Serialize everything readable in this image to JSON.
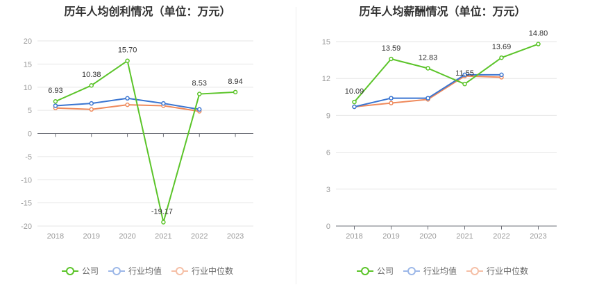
{
  "chart_data": [
    {
      "type": "line",
      "title": "历年人均创利情况（单位：万元）",
      "categories": [
        "2018",
        "2019",
        "2020",
        "2021",
        "2022",
        "2023"
      ],
      "y_ticks": [
        "20",
        "15",
        "10",
        "5",
        "0",
        "-5",
        "-10",
        "-15",
        "-20"
      ],
      "ylim": [
        -20,
        20
      ],
      "series": [
        {
          "name": "公司",
          "color": "#5bc429",
          "values": [
            6.93,
            10.38,
            15.7,
            -19.17,
            8.53,
            8.94
          ],
          "labels": [
            "6.93",
            "10.38",
            "15.70",
            "-19.17",
            "8.53",
            "8.94"
          ]
        },
        {
          "name": "行业均值",
          "color": "#3a75d1",
          "values": [
            6.0,
            6.5,
            7.6,
            6.5,
            5.2,
            null
          ]
        },
        {
          "name": "行业中位数",
          "color": "#ef8a5c",
          "values": [
            5.5,
            5.2,
            6.2,
            6.0,
            4.8,
            null
          ]
        }
      ]
    },
    {
      "type": "line",
      "title": "历年人均薪酬情况（单位：万元）",
      "categories": [
        "2018",
        "2019",
        "2020",
        "2021",
        "2022",
        "2023"
      ],
      "y_ticks": [
        "15",
        "12",
        "9",
        "6",
        "3",
        "0"
      ],
      "ylim": [
        0,
        15
      ],
      "series": [
        {
          "name": "公司",
          "color": "#5bc429",
          "values": [
            10.09,
            13.59,
            12.83,
            11.55,
            13.69,
            14.8
          ],
          "labels": [
            "10.09",
            "13.59",
            "12.83",
            "11.55",
            "13.69",
            "14.80"
          ]
        },
        {
          "name": "行业均值",
          "color": "#3a75d1",
          "values": [
            9.7,
            10.4,
            10.4,
            12.3,
            12.3,
            null
          ]
        },
        {
          "name": "行业中位数",
          "color": "#ef8a5c",
          "values": [
            9.7,
            10.0,
            10.3,
            12.2,
            12.1,
            null
          ]
        }
      ]
    }
  ],
  "legend": {
    "company": "公司",
    "industry_avg": "行业均值",
    "industry_median": "行业中位数"
  }
}
